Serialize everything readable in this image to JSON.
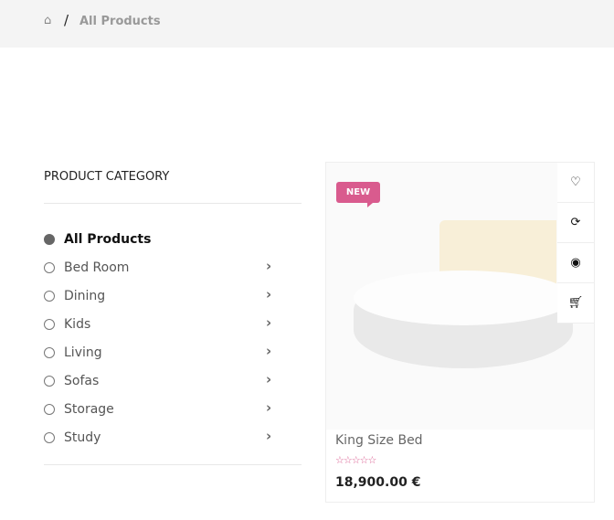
{
  "breadcrumb": {
    "home_icon": "home-icon",
    "separator": "/",
    "current": "All Products"
  },
  "sidebar": {
    "title": "PRODUCT CATEGORY",
    "items": [
      {
        "label": "All Products",
        "active": true
      },
      {
        "label": "Bed Room"
      },
      {
        "label": "Dining"
      },
      {
        "label": "Kids"
      },
      {
        "label": "Living"
      },
      {
        "label": "Sofas"
      },
      {
        "label": "Storage"
      },
      {
        "label": "Study"
      }
    ]
  },
  "product": {
    "badge": "NEW",
    "name": "King Size Bed",
    "rating": 0,
    "stars": "☆☆☆☆☆",
    "price": "18,900.00 €",
    "actions": [
      "wishlist",
      "compare",
      "quick-view",
      "add-to-cart"
    ]
  },
  "colors": {
    "accent": "#d95b8e"
  }
}
